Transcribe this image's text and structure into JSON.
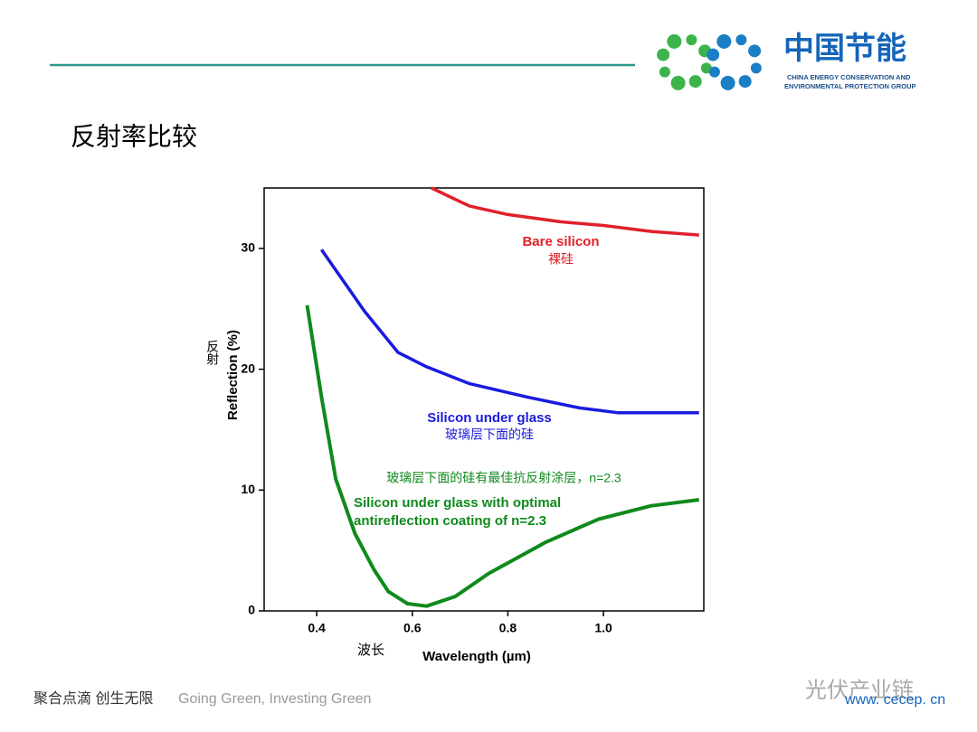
{
  "slide": {
    "title": "反射率比较",
    "logo": {
      "name": "中国节能",
      "line1": "CHINA ENERGY CONSERVATION AND",
      "line2": "ENVIRONMENTAL PROTECTION GROUP"
    },
    "footer": {
      "slogan_cn": "聚合点滴 创生无限",
      "slogan_en": "Going Green, Investing Green",
      "url": "www. cecep. cn",
      "watermark": "光伏产业链"
    }
  },
  "chart_data": {
    "type": "line",
    "y_label": "Reflection (%)",
    "y_label_cn": "反射",
    "x_label": "Wavelength (µm)",
    "x_label_cn": "波长",
    "xlim": [
      0.29,
      1.21
    ],
    "ylim": [
      0,
      35
    ],
    "xticks": [
      0.4,
      0.6,
      0.8,
      {
        "value": 1,
        "label": "1.0"
      }
    ],
    "yticks": [
      0,
      10,
      20,
      30
    ],
    "grid": false,
    "series": [
      {
        "name": "Bare silicon",
        "label_cn": "裸硅",
        "color": "#e0202a",
        "x": [
          0.64,
          0.72,
          0.8,
          0.91,
          1.0,
          1.1,
          1.2
        ],
        "values": [
          35.0,
          33.5,
          32.8,
          32.2,
          31.9,
          31.4,
          31.1
        ]
      },
      {
        "name": "Silicon under glass",
        "label_cn": "玻璃层下面的硅",
        "color": "#1a1adf",
        "x": [
          0.41,
          0.5,
          0.57,
          0.63,
          0.72,
          0.84,
          0.95,
          1.03,
          1.2
        ],
        "values": [
          29.9,
          24.8,
          21.4,
          20.2,
          18.8,
          17.7,
          16.8,
          16.4,
          16.4
        ]
      },
      {
        "name": "Silicon under glass with optimal antireflection coating of n=2.3",
        "label_cn": "玻璃层下面的硅有最佳抗反射涂层，n=2.3",
        "color": "#0f8a1c",
        "x": [
          0.38,
          0.41,
          0.44,
          0.48,
          0.52,
          0.55,
          0.59,
          0.63,
          0.69,
          0.76,
          0.88,
          0.99,
          1.1,
          1.2
        ],
        "values": [
          25.3,
          17.7,
          10.9,
          6.4,
          3.4,
          1.6,
          0.6,
          0.4,
          1.2,
          3.1,
          5.7,
          7.6,
          8.7,
          9.2
        ]
      }
    ]
  }
}
